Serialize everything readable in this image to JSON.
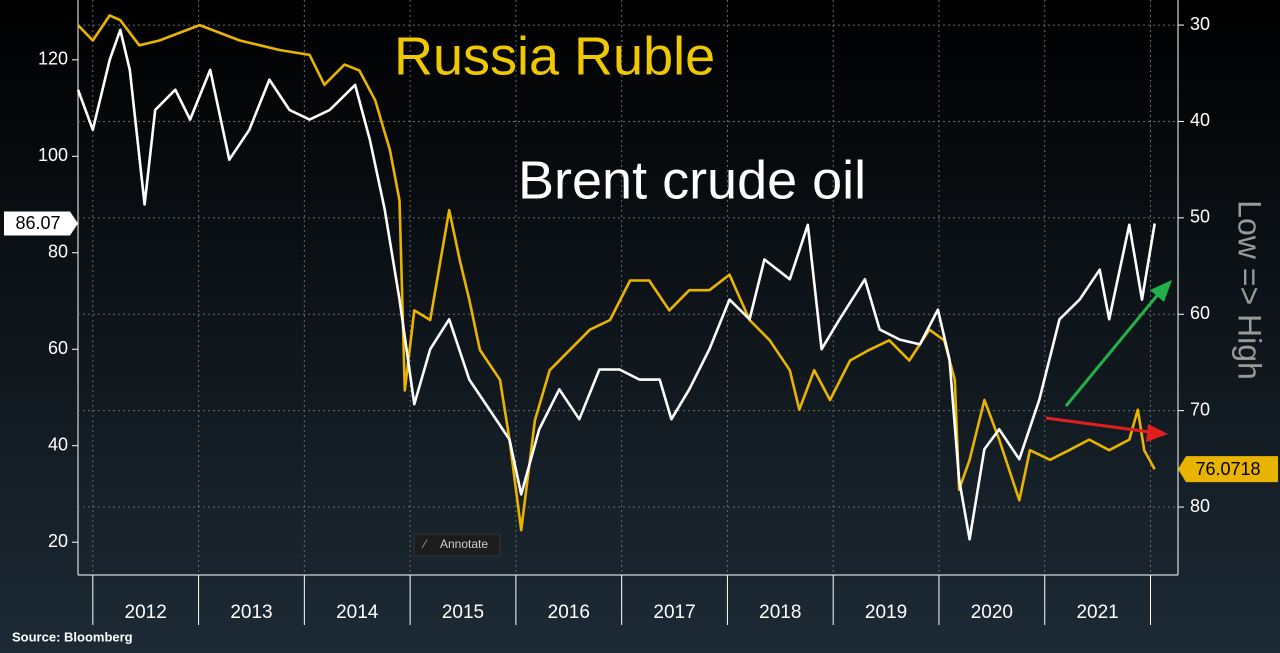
{
  "chart_data": {
    "type": "line",
    "source": "Source: Bloomberg",
    "y2label": "Low => High",
    "button": "Annotate",
    "xlim": [
      2011.86,
      2022.26
    ],
    "xticks": [
      {
        "value": 2012.5,
        "label": "2012"
      },
      {
        "value": 2013.5,
        "label": "2013"
      },
      {
        "value": 2014.5,
        "label": "2014"
      },
      {
        "value": 2015.5,
        "label": "2015"
      },
      {
        "value": 2016.5,
        "label": "2016"
      },
      {
        "value": 2017.5,
        "label": "2017"
      },
      {
        "value": 2018.5,
        "label": "2018"
      },
      {
        "value": 2019.5,
        "label": "2019"
      },
      {
        "value": 2020.5,
        "label": "2020"
      },
      {
        "value": 2021.5,
        "label": "2021"
      }
    ],
    "ylim": [
      13.2,
      132.4
    ],
    "yticks": [
      20,
      40,
      60,
      80,
      100,
      120
    ],
    "y2lim": [
      87.05,
      27.4
    ],
    "y2ticks": [
      30,
      40,
      50,
      60,
      70,
      80
    ],
    "grid": true,
    "series": [
      {
        "name": "Brent crude oil",
        "color": "#ffffff",
        "x": [
          2011.86,
          2012.0,
          2012.16,
          2012.26,
          2012.35,
          2012.49,
          2012.59,
          2012.78,
          2012.92,
          2013.11,
          2013.29,
          2013.48,
          2013.67,
          2013.86,
          2014.05,
          2014.24,
          2014.48,
          2014.62,
          2014.76,
          2014.9,
          2015.04,
          2015.19,
          2015.37,
          2015.56,
          2015.75,
          2015.94,
          2016.05,
          2016.22,
          2016.41,
          2016.6,
          2016.79,
          2016.98,
          2017.17,
          2017.36,
          2017.47,
          2017.64,
          2017.83,
          2018.02,
          2018.21,
          2018.35,
          2018.59,
          2018.76,
          2018.89,
          2019.06,
          2019.3,
          2019.44,
          2019.63,
          2019.82,
          2019.99,
          2020.1,
          2020.19,
          2020.29,
          2020.43,
          2020.57,
          2020.76,
          2020.95,
          2021.14,
          2021.33,
          2021.52,
          2021.61,
          2021.8,
          2021.92,
          2022.04
        ],
        "values": [
          113.8,
          105.5,
          120,
          126.2,
          117.9,
          90,
          109.6,
          113.8,
          107.6,
          117.9,
          99.3,
          105.5,
          115.9,
          109.6,
          107.6,
          109.6,
          114.8,
          103.4,
          89,
          70.3,
          48.6,
          60,
          66.2,
          53.7,
          47.5,
          41.3,
          29.9,
          43.4,
          51.7,
          45.5,
          55.8,
          55.8,
          53.7,
          53.7,
          45.5,
          51.7,
          60,
          70.3,
          66.2,
          78.6,
          74.5,
          85.8,
          60,
          66.2,
          74.5,
          64.1,
          62,
          61,
          68.2,
          57.9,
          33,
          20.6,
          39.3,
          43.4,
          37.2,
          49.6,
          66.2,
          70.3,
          76.5,
          66.2,
          85.8,
          70.3,
          86.07
        ]
      },
      {
        "name": "Russia Ruble",
        "color": "#e8b400",
        "axis": "y2",
        "x": [
          2011.86,
          2012.0,
          2012.16,
          2012.26,
          2012.44,
          2012.63,
          2013.01,
          2013.39,
          2013.77,
          2014.05,
          2014.19,
          2014.38,
          2014.52,
          2014.67,
          2014.81,
          2014.9,
          2014.95,
          2015.04,
          2015.19,
          2015.37,
          2015.47,
          2015.56,
          2015.66,
          2015.85,
          2015.94,
          2016.05,
          2016.18,
          2016.32,
          2016.51,
          2016.7,
          2016.89,
          2017.08,
          2017.26,
          2017.45,
          2017.64,
          2017.83,
          2018.02,
          2018.21,
          2018.4,
          2018.59,
          2018.68,
          2018.82,
          2018.97,
          2019.16,
          2019.34,
          2019.53,
          2019.72,
          2019.91,
          2020.05,
          2020.15,
          2020.19,
          2020.29,
          2020.43,
          2020.57,
          2020.76,
          2020.86,
          2021.05,
          2021.23,
          2021.42,
          2021.61,
          2021.8,
          2021.88,
          2021.94,
          2022.04
        ],
        "values": [
          30,
          31.6,
          29,
          29.5,
          32.1,
          31.6,
          30,
          31.6,
          32.6,
          33.1,
          36.2,
          34.1,
          34.7,
          37.8,
          43,
          48.2,
          67.9,
          59.6,
          60.6,
          49.2,
          54.4,
          58.5,
          63.7,
          66.8,
          73,
          82.4,
          71,
          65.8,
          63.7,
          61.6,
          60.6,
          56.5,
          56.5,
          59.6,
          57.5,
          57.5,
          55.9,
          60.6,
          62.7,
          65.8,
          69.9,
          65.8,
          68.9,
          64.8,
          63.7,
          62.7,
          64.8,
          61.6,
          62.7,
          66.8,
          78.2,
          75.1,
          68.9,
          73,
          79.3,
          74.1,
          75.1,
          74.1,
          73,
          74.1,
          73,
          69.9,
          74.1,
          76.0718
        ]
      }
    ]
  }
}
